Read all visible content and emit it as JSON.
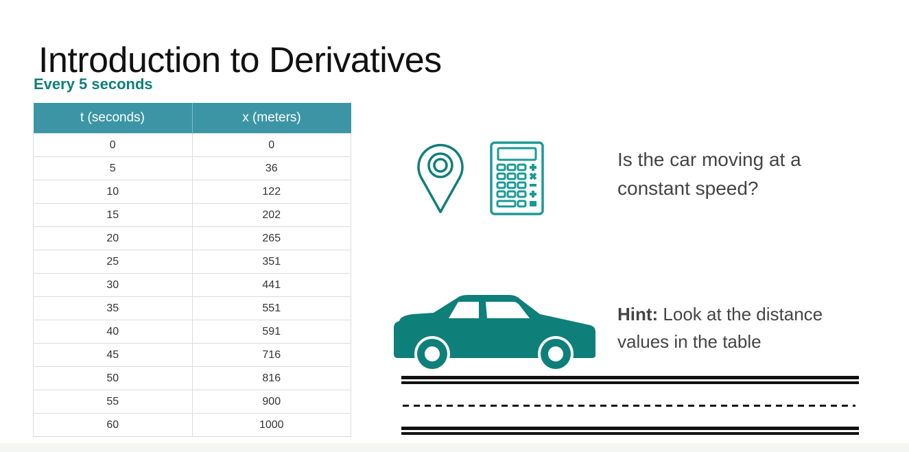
{
  "slide": {
    "title": "Introduction to Derivatives",
    "subtitle": "Every 5 seconds",
    "accent_color": "#0f7e79",
    "table": {
      "headers": [
        "t (seconds)",
        "x (meters)"
      ],
      "rows": [
        [
          "0",
          "0"
        ],
        [
          "5",
          "36"
        ],
        [
          "10",
          "122"
        ],
        [
          "15",
          "202"
        ],
        [
          "20",
          "265"
        ],
        [
          "25",
          "351"
        ],
        [
          "30",
          "441"
        ],
        [
          "35",
          "551"
        ],
        [
          "40",
          "591"
        ],
        [
          "45",
          "716"
        ],
        [
          "50",
          "816"
        ],
        [
          "55",
          "900"
        ],
        [
          "60",
          "1000"
        ]
      ]
    },
    "question": {
      "line1": "Is the car moving at a",
      "line2": "constant speed?"
    },
    "hint": {
      "label": "Hint:",
      "line1": " Look at the distance",
      "line2": "values in the table"
    },
    "icons": [
      "map-pin-icon",
      "calculator-icon",
      "car-icon",
      "road-icon"
    ]
  }
}
